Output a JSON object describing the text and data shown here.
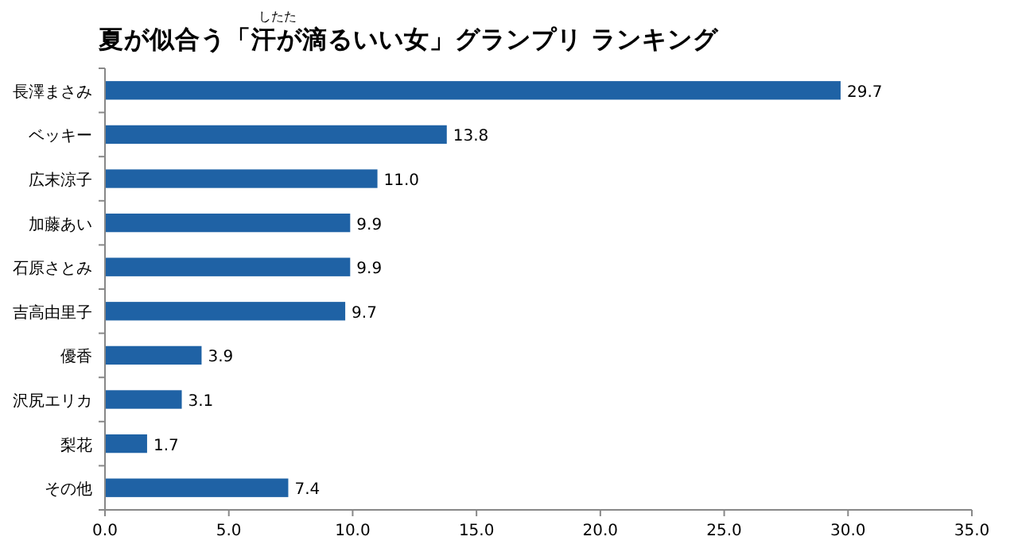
{
  "chart_data": {
    "type": "bar",
    "orientation": "horizontal",
    "title": "夏が似合う「汗が滴るいい女」グランプリ ランキング",
    "annotations": [
      "したた"
    ],
    "categories": [
      "長澤まさみ",
      "ベッキー",
      "広末涼子",
      "加藤あい",
      "石原さとみ",
      "吉高由里子",
      "優香",
      "沢尻エリカ",
      "梨花",
      "その他"
    ],
    "values": [
      29.7,
      13.8,
      11.0,
      9.9,
      9.9,
      9.7,
      3.9,
      3.1,
      1.7,
      7.4
    ],
    "value_labels": [
      "29.7",
      "13.8",
      "11.0",
      "9.9",
      "9.9",
      "9.7",
      "3.9",
      "3.1",
      "1.7",
      "7.4"
    ],
    "color": "#1f62a5",
    "xlim": [
      0,
      35
    ],
    "xticks": [
      {
        "value": 0,
        "label": "0.0"
      },
      {
        "value": 5,
        "label": "5.0"
      },
      {
        "value": 10,
        "label": "10.0"
      },
      {
        "value": 15,
        "label": "15.0"
      },
      {
        "value": 20,
        "label": "20.0"
      },
      {
        "value": 25,
        "label": "25.0"
      },
      {
        "value": 30,
        "label": "30.0"
      },
      {
        "value": 35,
        "label": "35.0"
      }
    ],
    "grid": false
  }
}
